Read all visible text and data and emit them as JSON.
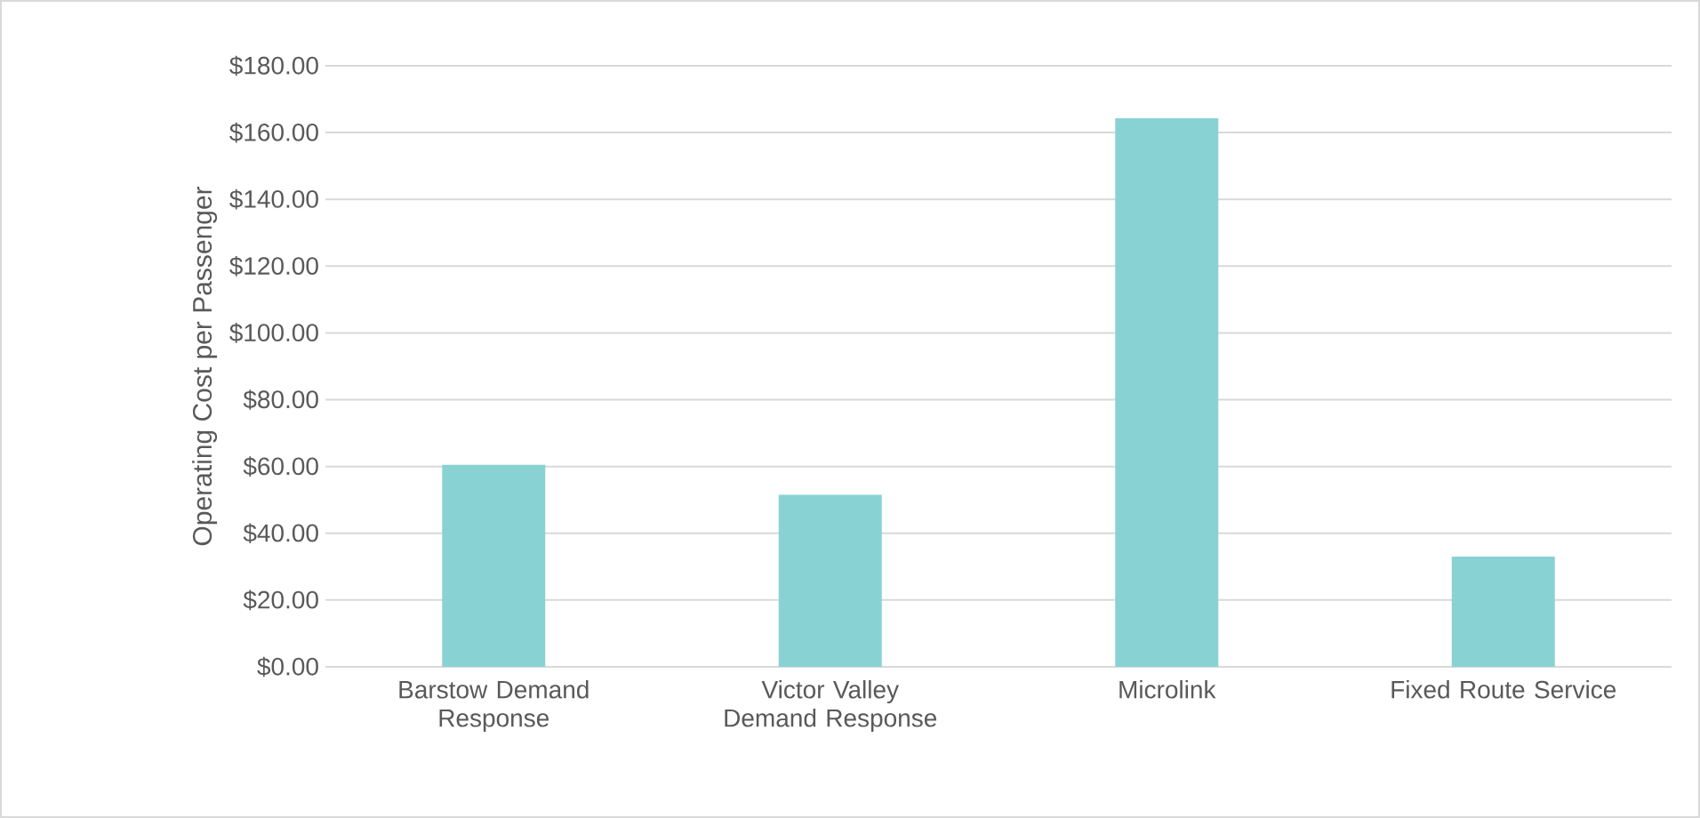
{
  "chart_data": {
    "type": "bar",
    "ylabel": "Operating Cost per Passenger",
    "categories": [
      "Barstow Demand Response",
      "Victor Valley Demand Response",
      "Microlink",
      "Fixed Route Service"
    ],
    "values": [
      60.5,
      51.5,
      164.3,
      33.0
    ],
    "color": "#89d2d4",
    "ylim": [
      0,
      180
    ],
    "yticks": [
      {
        "value": 0,
        "label": "$0.00"
      },
      {
        "value": 20,
        "label": "$20.00"
      },
      {
        "value": 40,
        "label": "$40.00"
      },
      {
        "value": 60,
        "label": "$60.00"
      },
      {
        "value": 80,
        "label": "$80.00"
      },
      {
        "value": 100,
        "label": "$100.00"
      },
      {
        "value": 120,
        "label": "$120.00"
      },
      {
        "value": 140,
        "label": "$140.00"
      },
      {
        "value": 160,
        "label": "$160.00"
      },
      {
        "value": 180,
        "label": "$180.00"
      }
    ],
    "grid": "y"
  }
}
